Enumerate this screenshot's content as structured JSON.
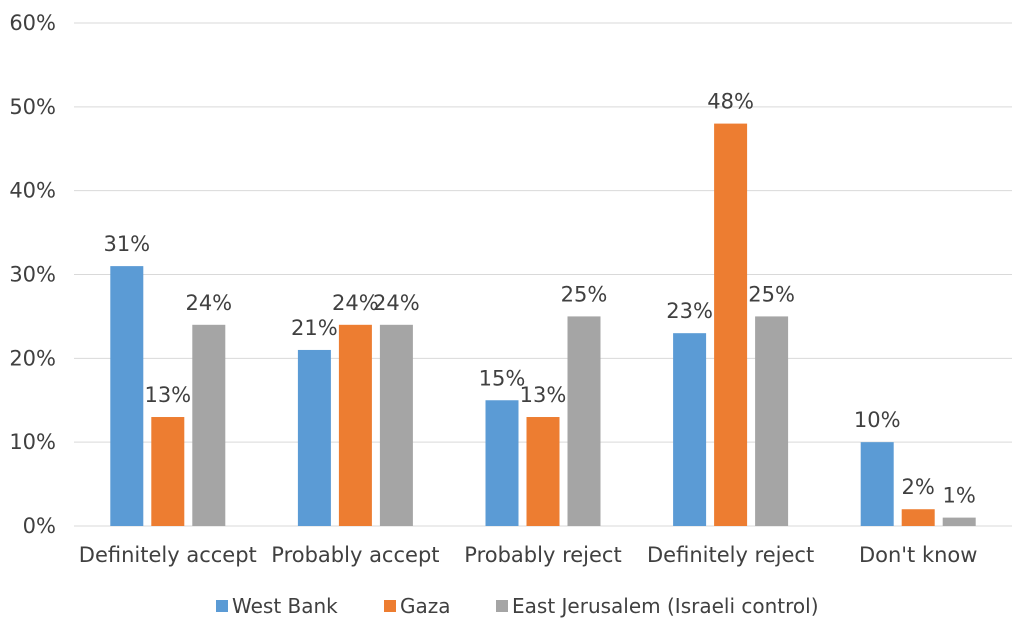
{
  "chart_data": {
    "type": "bar",
    "categories": [
      "Definitely accept",
      "Probably accept",
      "Probably reject",
      "Definitely reject",
      "Don't know"
    ],
    "series": [
      {
        "name": "West Bank",
        "values": [
          31,
          21,
          15,
          23,
          10
        ],
        "color": "#5b9bd5"
      },
      {
        "name": "Gaza",
        "values": [
          13,
          24,
          13,
          48,
          2
        ],
        "color": "#ed7d31"
      },
      {
        "name": "East Jerusalem (Israeli control)",
        "values": [
          24,
          24,
          25,
          25,
          1
        ],
        "color": "#a5a5a5"
      }
    ],
    "value_format": "percent",
    "ylim": [
      0,
      60
    ],
    "yticks": [
      0,
      10,
      20,
      30,
      40,
      50,
      60
    ],
    "ytick_labels": [
      "0%",
      "10%",
      "20%",
      "30%",
      "40%",
      "50%",
      "60%"
    ],
    "grid": true,
    "legend": "bottom",
    "title": "",
    "xlabel": "",
    "ylabel": ""
  }
}
